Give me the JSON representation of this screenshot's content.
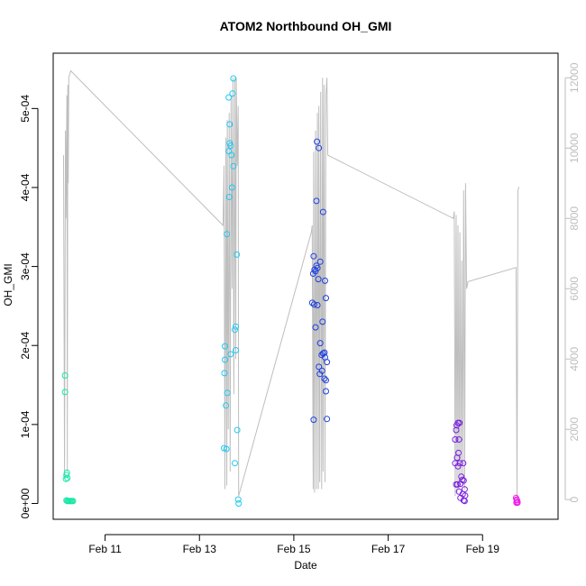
{
  "chart_data": {
    "type": "scatter",
    "title": "ATOM2 Northbound OH_GMI",
    "xlabel": "Date",
    "ylabel": "OH_GMI",
    "x_ticks": [
      {
        "label": "Feb 11",
        "day": 11
      },
      {
        "label": "Feb 13",
        "day": 13
      },
      {
        "label": "Feb 15",
        "day": 15
      },
      {
        "label": "Feb 17",
        "day": 17
      },
      {
        "label": "Feb 19",
        "day": 19
      }
    ],
    "xlim": [
      9.9,
      20.6
    ],
    "y_ticks": [
      {
        "label": "0e+00",
        "value": 0
      },
      {
        "label": "1e-04",
        "value": 0.0001
      },
      {
        "label": "2e-04",
        "value": 0.0002
      },
      {
        "label": "3e-04",
        "value": 0.0003
      },
      {
        "label": "4e-04",
        "value": 0.0004
      },
      {
        "label": "5e-04",
        "value": 0.0005
      }
    ],
    "ylim": [
      -2e-05,
      0.00057
    ],
    "y2_ticks": [
      {
        "label": "0",
        "value": 0
      },
      {
        "label": "2000",
        "value": 2000
      },
      {
        "label": "4000",
        "value": 4000
      },
      {
        "label": "6000",
        "value": 6000
      },
      {
        "label": "8000",
        "value": 8000
      },
      {
        "label": "10000",
        "value": 10000
      },
      {
        "label": "12000",
        "value": 12000
      }
    ],
    "y2lim": [
      -560,
      12700
    ],
    "colors": {
      "altitude_line": "#bebebe",
      "right_axis": "#bebebe",
      "points_by_flight": [
        "#00ffaa",
        "#00bfff",
        "#0a3aff",
        "#7f00ff",
        "#ff00ff"
      ]
    },
    "point_series": [
      {
        "color": "#19e6a8",
        "points": [
          [
            10.15,
            0.000162
          ],
          [
            10.15,
            0.000141
          ],
          [
            10.17,
            3.1e-05
          ],
          [
            10.18,
            3.6e-05
          ],
          [
            10.19,
            3.9e-05
          ],
          [
            10.2,
            3.2e-05
          ],
          [
            10.18,
            4e-06
          ],
          [
            10.2,
            3e-06
          ],
          [
            10.22,
            3e-06
          ],
          [
            10.24,
            3e-06
          ],
          [
            10.26,
            3e-06
          ],
          [
            10.28,
            3e-06
          ],
          [
            10.3,
            3e-06
          ],
          [
            10.32,
            3e-06
          ]
        ]
      },
      {
        "color": "#21c8f0",
        "points": [
          [
            13.72,
            0.000538
          ],
          [
            13.7,
            0.000519
          ],
          [
            13.62,
            0.000514
          ],
          [
            13.64,
            0.00048
          ],
          [
            13.64,
            0.000456
          ],
          [
            13.66,
            0.000453
          ],
          [
            13.62,
            0.000446
          ],
          [
            13.68,
            0.000441
          ],
          [
            13.72,
            0.000427
          ],
          [
            13.69,
            0.0004
          ],
          [
            13.63,
            0.000388
          ],
          [
            13.58,
            0.000341
          ],
          [
            13.79,
            0.000315
          ],
          [
            13.77,
            0.000224
          ],
          [
            13.75,
            0.00022
          ],
          [
            13.54,
            0.000199
          ],
          [
            13.77,
            0.000194
          ],
          [
            13.66,
            0.000189
          ],
          [
            13.54,
            0.000182
          ],
          [
            13.53,
            0.000165
          ],
          [
            13.59,
            0.00014
          ],
          [
            13.56,
            0.000124
          ],
          [
            13.8,
            9.3e-05
          ],
          [
            13.52,
            7e-05
          ],
          [
            13.57,
            6.9e-05
          ],
          [
            13.75,
            5.1e-05
          ],
          [
            13.82,
            5e-06
          ],
          [
            13.83,
            0.0
          ]
        ]
      },
      {
        "color": "#1f3fe0",
        "points": [
          [
            15.49,
            0.000458
          ],
          [
            15.53,
            0.00045
          ],
          [
            15.48,
            0.000383
          ],
          [
            15.62,
            0.000369
          ],
          [
            15.42,
            0.000313
          ],
          [
            15.56,
            0.000306
          ],
          [
            15.48,
            0.000301
          ],
          [
            15.5,
            0.000298
          ],
          [
            15.44,
            0.000296
          ],
          [
            15.46,
            0.000294
          ],
          [
            15.41,
            0.000291
          ],
          [
            15.52,
            0.000284
          ],
          [
            15.66,
            0.000282
          ],
          [
            15.68,
            0.00026
          ],
          [
            15.39,
            0.000254
          ],
          [
            15.43,
            0.000252
          ],
          [
            15.5,
            0.000251
          ],
          [
            15.61,
            0.00023
          ],
          [
            15.46,
            0.000223
          ],
          [
            15.56,
            0.000203
          ],
          [
            15.65,
            0.000191
          ],
          [
            15.62,
            0.00019
          ],
          [
            15.59,
            0.000188
          ],
          [
            15.66,
            0.000185
          ],
          [
            15.7,
            0.000179
          ],
          [
            15.53,
            0.000173
          ],
          [
            15.6,
            0.000168
          ],
          [
            15.55,
            0.000164
          ],
          [
            15.65,
            0.000158
          ],
          [
            15.68,
            0.000156
          ],
          [
            15.68,
            0.000142
          ],
          [
            15.42,
            0.000106
          ],
          [
            15.7,
            0.000107
          ]
        ]
      },
      {
        "color": "#7a1ee0",
        "points": [
          [
            18.48,
            0.000102
          ],
          [
            18.51,
            0.000102
          ],
          [
            18.45,
            9.9e-05
          ],
          [
            18.44,
            9.3e-05
          ],
          [
            18.42,
            8.1e-05
          ],
          [
            18.5,
            8.1e-05
          ],
          [
            18.49,
            6.4e-05
          ],
          [
            18.46,
            5.8e-05
          ],
          [
            18.42,
            5.1e-05
          ],
          [
            18.52,
            5.1e-05
          ],
          [
            18.48,
            4.7e-05
          ],
          [
            18.59,
            5.1e-05
          ],
          [
            18.55,
            3.4e-05
          ],
          [
            18.57,
            3e-05
          ],
          [
            18.6,
            2.9e-05
          ],
          [
            18.53,
            2.5e-05
          ],
          [
            18.44,
            2.4e-05
          ],
          [
            18.47,
            2.4e-05
          ],
          [
            18.62,
            1.8e-05
          ],
          [
            18.5,
            1.5e-05
          ],
          [
            18.58,
            1.2e-05
          ],
          [
            18.63,
            1e-05
          ],
          [
            18.53,
            7e-06
          ],
          [
            18.6,
            4e-06
          ],
          [
            18.62,
            3e-06
          ]
        ]
      },
      {
        "color": "#ee1ee8",
        "points": [
          [
            19.71,
            7e-06
          ],
          [
            19.72,
            5e-06
          ],
          [
            19.73,
            4e-06
          ],
          [
            19.74,
            2e-06
          ],
          [
            19.72,
            1e-06
          ],
          [
            19.74,
            1e-06
          ]
        ]
      }
    ],
    "altitude_line": {
      "x": [
        10.12,
        10.14,
        10.16,
        10.17,
        10.19,
        10.2,
        10.21,
        10.22,
        10.23,
        10.25,
        10.27,
        13.5,
        13.52,
        13.54,
        13.56,
        13.58,
        13.59,
        13.61,
        13.63,
        13.65,
        13.67,
        13.69,
        13.71,
        13.73,
        13.75,
        13.77,
        13.78,
        13.8,
        13.82,
        13.83,
        15.37,
        15.39,
        15.41,
        15.42,
        15.44,
        15.46,
        15.48,
        15.5,
        15.52,
        15.53,
        15.55,
        15.57,
        15.59,
        15.61,
        15.62,
        15.64,
        15.66,
        15.68,
        15.7,
        15.72,
        18.38,
        18.4,
        18.42,
        18.44,
        18.46,
        18.48,
        18.5,
        18.52,
        18.54,
        18.56,
        18.58,
        18.6,
        18.62,
        18.64,
        18.66,
        18.68,
        18.69,
        19.71,
        19.73,
        19.75,
        19.77
      ],
      "y": [
        9800,
        600,
        10500,
        8000,
        11500,
        800,
        11800,
        9000,
        12000,
        12100,
        12200,
        7800,
        9500,
        300,
        10300,
        400,
        10800,
        2000,
        11000,
        800,
        11500,
        6000,
        12000,
        3000,
        12000,
        4000,
        12000,
        9500,
        11200,
        100,
        7600,
        7800,
        300,
        9900,
        200,
        10500,
        300,
        11000,
        300,
        11200,
        500,
        11600,
        300,
        12000,
        800,
        11800,
        500,
        11500,
        12000,
        9800,
        8000,
        8200,
        100,
        8100,
        200,
        7800,
        300,
        7600,
        500,
        6800,
        400,
        8800,
        300,
        9000,
        6000,
        6100,
        6200,
        6600,
        0,
        8800,
        8900
      ]
    }
  }
}
